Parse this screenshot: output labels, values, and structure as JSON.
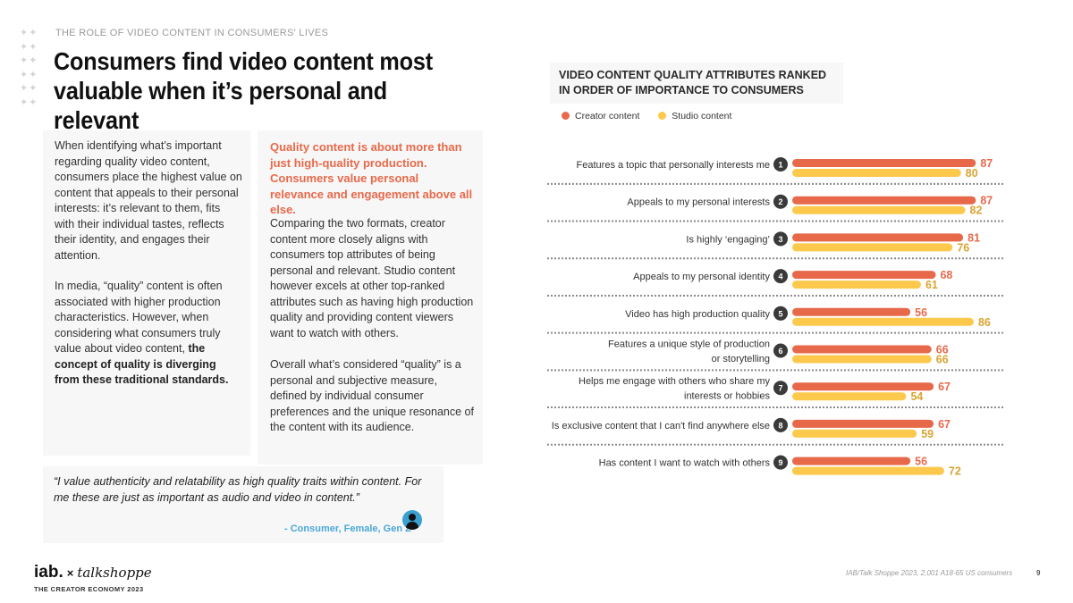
{
  "header": {
    "kicker": "THE ROLE OF VIDEO CONTENT IN CONSUMERS' LIVES",
    "title": "Consumers find video content most valuable when it’s personal and relevant"
  },
  "left_column": {
    "p1": "When identifying what’s important regarding quality video content, consumers place the highest value on content that appeals to their personal interests: it’s relevant to them, fits with their individual tastes, reflects their identity, and engages their attention.",
    "p2_plain": "In media, “quality” content is often associated with higher production characteristics. However, when considering what consumers truly value about video content,",
    "p2_bold": "the concept of quality is diverging from these traditional standards."
  },
  "middle_column": {
    "highlight": "Quality content is about more than just high-quality production. Consumers value personal relevance and engagement above all else.",
    "p1": "Comparing the two formats, creator content more closely aligns with consumers top attributes of being personal and relevant. Studio content however excels at other top-ranked attributes such as having high production quality and providing content viewers want to watch with others.",
    "p2": "Overall what’s considered “quality” is a personal and subjective measure, defined by individual consumer preferences and the unique resonance of the content with its audience."
  },
  "quote": {
    "text": "“I value authenticity and relatability as high quality traits within content. For me these are just as important as audio and video in content.”",
    "attribution": "- Consumer, Female, Gen Z"
  },
  "footer": {
    "logo_iab": "iab.",
    "logo_x": "×",
    "logo_partner": "talkshoppe",
    "subtitle": "THE CREATOR ECONOMY 2023",
    "source": "IAB/Talk Shoppe 2023, 2,001 A18-65 US consumers",
    "page": "9"
  },
  "colors": {
    "creator": "#e8694a",
    "studio": "#fcc94d",
    "accent_text": "#e8694a",
    "attribution": "#4aa8d8"
  },
  "chart_data": {
    "type": "bar",
    "orientation": "horizontal",
    "title": "VIDEO CONTENT QUALITY ATTRIBUTES RANKED IN ORDER OF IMPORTANCE TO CONSUMERS",
    "categories": [
      [
        "Features a topic that personally interests me"
      ],
      [
        "Appeals to my personal interests"
      ],
      [
        "Is highly ‘engaging’"
      ],
      [
        "Appeals to my personal identity"
      ],
      [
        "Video has high production quality"
      ],
      [
        "Features a unique style of production",
        "or storytelling"
      ],
      [
        "Helps me engage with others who share my",
        "interests or hobbies"
      ],
      [
        "Is exclusive content that I can't find anywhere else"
      ],
      [
        "Has content I want to watch with others"
      ]
    ],
    "ranks": [
      "1",
      "2",
      "3",
      "4",
      "5",
      "6",
      "7",
      "8",
      "9"
    ],
    "series": [
      {
        "name": "Creator content",
        "values": [
          87,
          87,
          81,
          68,
          56,
          66,
          67,
          67,
          56
        ]
      },
      {
        "name": "Studio content",
        "values": [
          80,
          82,
          76,
          61,
          86,
          66,
          54,
          59,
          72
        ]
      }
    ],
    "xlim": [
      0,
      100
    ],
    "legend_position": "top-left",
    "grid": false
  }
}
